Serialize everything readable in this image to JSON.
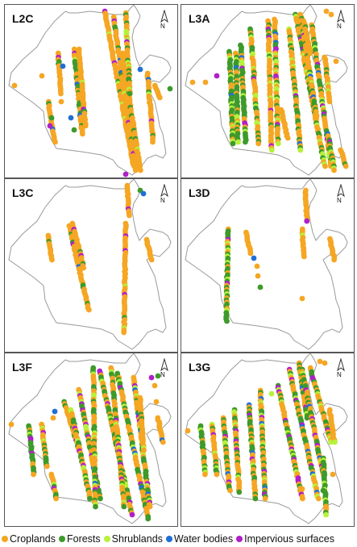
{
  "panels": [
    {
      "label": "L2C",
      "north_label": "N"
    },
    {
      "label": "L3A",
      "north_label": "N"
    },
    {
      "label": "L3C",
      "north_label": "N"
    },
    {
      "label": "L3D",
      "north_label": "N"
    },
    {
      "label": "L3F",
      "north_label": "N"
    },
    {
      "label": "L3G",
      "north_label": "N"
    }
  ],
  "legend": [
    {
      "label": "Croplands",
      "color": "#F5A623"
    },
    {
      "label": "Forests",
      "color": "#3E9A2A"
    },
    {
      "label": "Shrublands",
      "color": "#B6F23A"
    },
    {
      "label": "Water bodies",
      "color": "#1E6FD6"
    },
    {
      "label": "Impervious surfaces",
      "color": "#B01FC8"
    }
  ]
}
